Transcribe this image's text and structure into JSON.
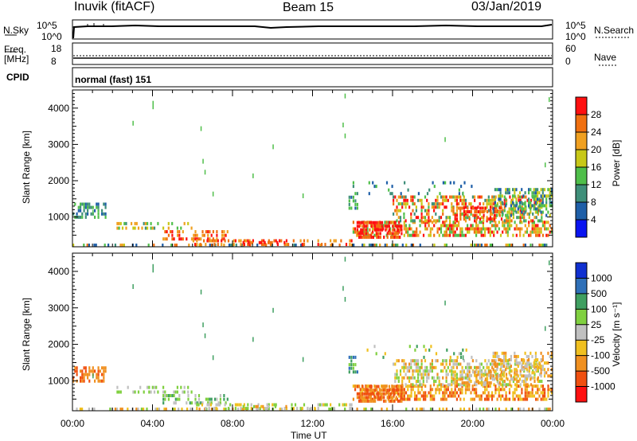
{
  "header": {
    "station": "Inuvik (fitACF)",
    "beam": "Beam 15",
    "date": "03/Jan/2019"
  },
  "status_panels": {
    "nsky_label": "N.Sky",
    "nsky_ticks": [
      "10^5",
      "10^0"
    ],
    "nsearch_label": "N.Search",
    "nsearch_ticks": [
      "10^5",
      "10^0"
    ],
    "freq_label_1": "Freq.",
    "freq_label_2": "[MHz]",
    "freq_ticks": [
      "18",
      "8"
    ],
    "nave_label": "Nave",
    "nave_ticks": [
      "60",
      "0"
    ],
    "cpid_label": "CPID",
    "cpid_value": "normal (fast) 151"
  },
  "chart_data": [
    {
      "type": "heatmap",
      "name": "power-panel",
      "ylabel": "Slant Range [km]",
      "yticks": [
        "1000",
        "2000",
        "3000",
        "4000"
      ],
      "ylim": [
        180,
        4500
      ],
      "xlim": [
        0,
        24
      ],
      "colorbar_label": "Power [dB]",
      "colorbar_ticks": [
        "4",
        "8",
        "12",
        "16",
        "20",
        "24",
        "28"
      ],
      "colors": [
        "#0a14f0",
        "#1f5fa8",
        "#3f8f7a",
        "#4fbf4a",
        "#c8c818",
        "#f0a020",
        "#f07010",
        "#ff1010"
      ]
    },
    {
      "type": "heatmap",
      "name": "velocity-panel",
      "ylabel": "Slant Range [km]",
      "yticks": [
        "1000",
        "2000",
        "3000",
        "4000"
      ],
      "ylim": [
        180,
        4500
      ],
      "xlim": [
        0,
        24
      ],
      "xlabel": "Time UT",
      "xticks": [
        "00:00",
        "04:00",
        "08:00",
        "12:00",
        "16:00",
        "20:00",
        "00:00"
      ],
      "colorbar_label": "Velocity [m s⁻¹]",
      "colorbar_ticks": [
        "1000",
        "500",
        "100",
        "25",
        "-25",
        "-100",
        "-500",
        "-1000"
      ],
      "colors": [
        "#1030d0",
        "#2f70b8",
        "#3f9f60",
        "#80d040",
        "#c0c0c0",
        "#f0c020",
        "#f09020",
        "#f05010",
        "#ff1010"
      ]
    }
  ]
}
